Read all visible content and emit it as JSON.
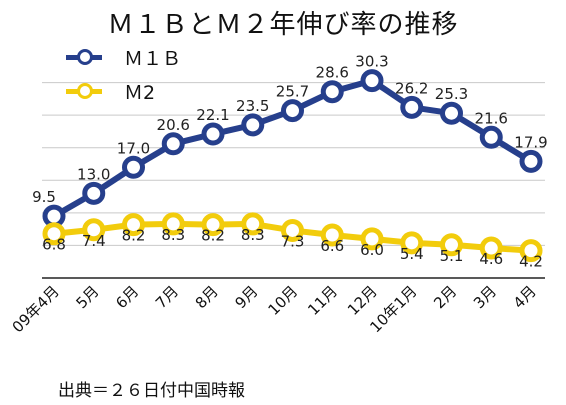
{
  "title": "Ｍ１ＢとＭ２年伸び率の推移",
  "source": "出典＝２６日付中国時報",
  "chart_data": {
    "type": "line",
    "categories": [
      "09年4月",
      "5月",
      "6月",
      "7月",
      "8月",
      "9月",
      "10月",
      "11月",
      "12月",
      "10年1月",
      "2月",
      "3月",
      "4月"
    ],
    "ylim": [
      0,
      35
    ],
    "grid": true,
    "legend_position": "top-left",
    "series": [
      {
        "name": "Ｍ１Ｂ",
        "color": "#263f8c",
        "values": [
          9.5,
          13.0,
          17.0,
          20.6,
          22.1,
          23.5,
          25.7,
          28.6,
          30.3,
          26.2,
          25.3,
          21.6,
          17.9
        ],
        "labels": [
          "9.5",
          "13.0",
          "17.0",
          "20.6",
          "22.1",
          "23.5",
          "25.7",
          "28.6",
          "30.3",
          "26.2",
          "25.3",
          "21.6",
          "17.9"
        ]
      },
      {
        "name": "Ｍ2",
        "color": "#f2cc0c",
        "values": [
          6.8,
          7.4,
          8.2,
          8.3,
          8.2,
          8.3,
          7.3,
          6.6,
          6.0,
          5.4,
          5.1,
          4.6,
          4.2
        ],
        "labels": [
          "6.8",
          "7.4",
          "8.2",
          "8.3",
          "8.2",
          "8.3",
          "7.3",
          "6.6",
          "6.0",
          "5.4",
          "5.1",
          "4.6",
          "4.2"
        ]
      }
    ]
  }
}
